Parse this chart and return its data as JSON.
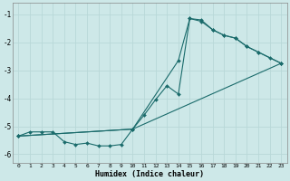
{
  "xlabel": "Humidex (Indice chaleur)",
  "xlim": [
    -0.5,
    23.5
  ],
  "ylim": [
    -6.3,
    -0.6
  ],
  "bg_color": "#cde8e8",
  "grid_color": "#b8d8d8",
  "line_color": "#1a6b6b",
  "yticks": [
    -6,
    -5,
    -4,
    -3,
    -2,
    -1
  ],
  "xticks": [
    0,
    1,
    2,
    3,
    4,
    5,
    6,
    7,
    8,
    9,
    10,
    11,
    12,
    13,
    14,
    15,
    16,
    17,
    18,
    19,
    20,
    21,
    22,
    23
  ],
  "line1_x": [
    0,
    1,
    2,
    3,
    4,
    5,
    6,
    7,
    8,
    9,
    10,
    23
  ],
  "line1_y": [
    -5.35,
    -5.2,
    -5.2,
    -5.2,
    -5.55,
    -5.65,
    -5.6,
    -5.7,
    -5.7,
    -5.65,
    -5.1,
    -2.75
  ],
  "line2_x": [
    0,
    10,
    14,
    15,
    16,
    17,
    18,
    19,
    20,
    21,
    23
  ],
  "line2_y": [
    -5.35,
    -5.1,
    -2.65,
    -1.15,
    -1.25,
    -1.55,
    -1.75,
    -1.85,
    -2.15,
    -2.35,
    -2.75
  ],
  "line3_x": [
    0,
    10,
    11,
    12,
    13,
    14,
    15,
    16,
    17,
    18,
    19,
    20,
    21,
    22,
    23
  ],
  "line3_y": [
    -5.35,
    -5.1,
    -4.6,
    -4.05,
    -3.55,
    -3.85,
    -1.15,
    -1.2,
    -1.55,
    -1.75,
    -1.85,
    -2.15,
    -2.35,
    -2.55,
    -2.75
  ]
}
